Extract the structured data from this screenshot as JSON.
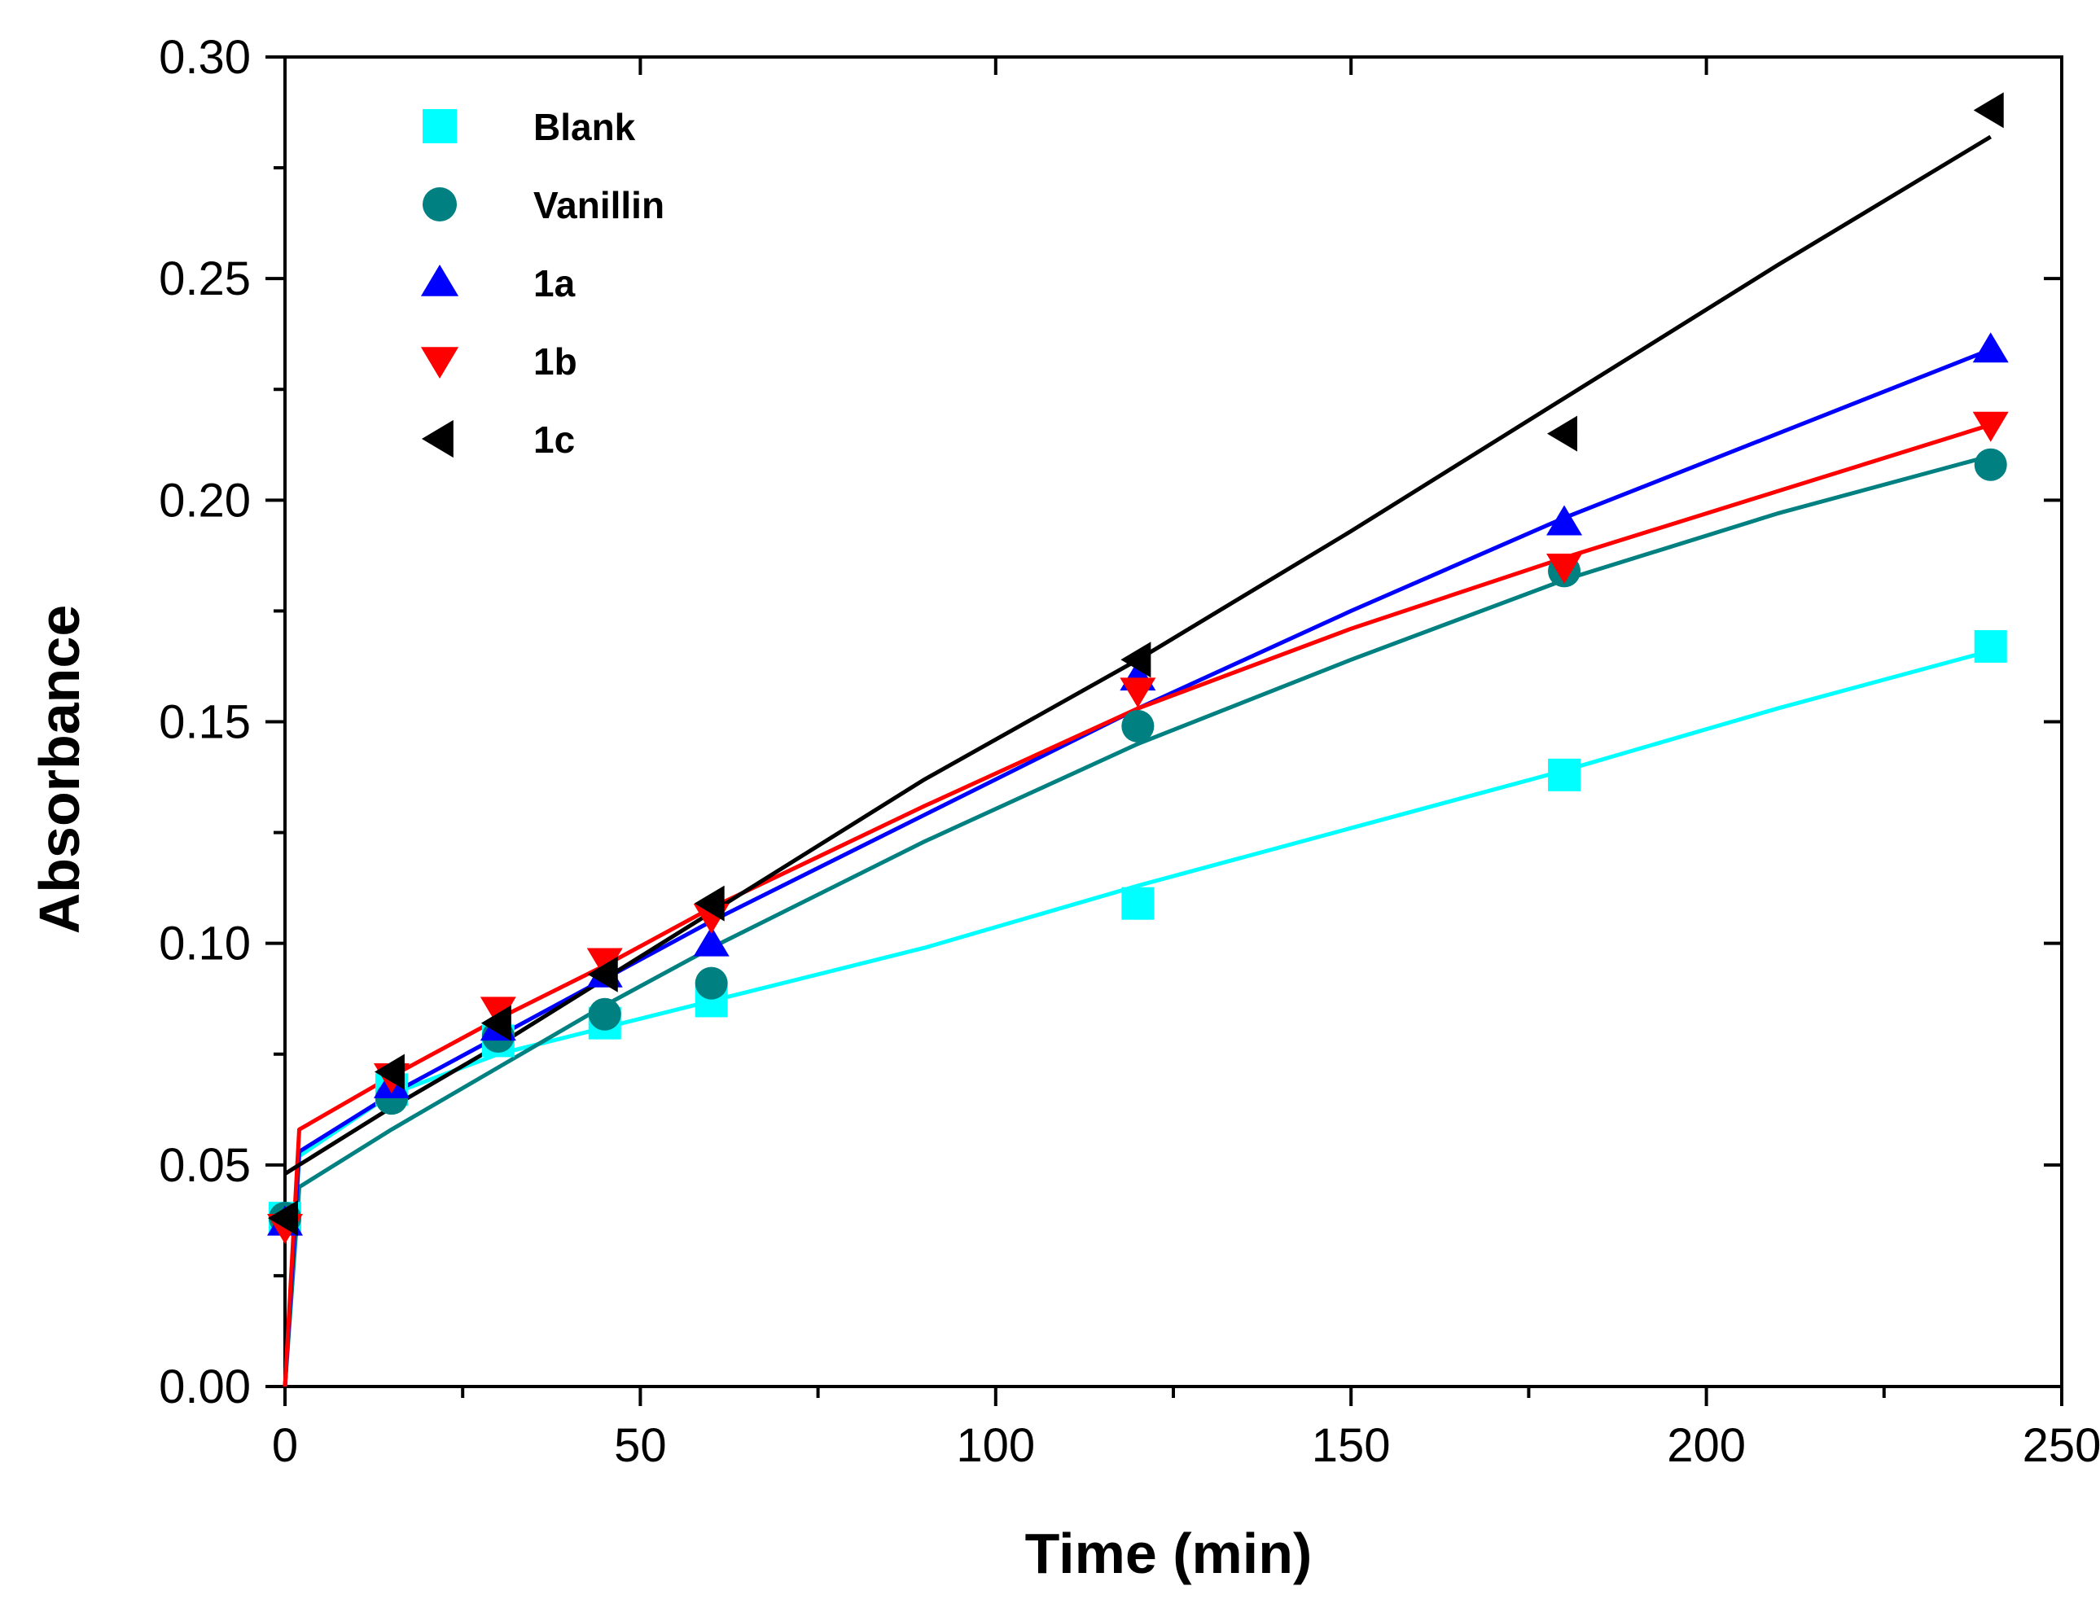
{
  "chart_data": {
    "type": "scatter",
    "title": "",
    "xlabel": "Time (min)",
    "ylabel": "Absorbance",
    "xlim": [
      0,
      250
    ],
    "ylim": [
      0,
      0.3
    ],
    "xticks": [
      0,
      50,
      100,
      150,
      200,
      250
    ],
    "xtick_labels": [
      "0",
      "50",
      "100",
      "150",
      "200",
      "250"
    ],
    "yticks": [
      0,
      0.05,
      0.1,
      0.15,
      0.2,
      0.25,
      0.3
    ],
    "ytick_labels": [
      "0.00",
      "0.05",
      "0.10",
      "0.15",
      "0.20",
      "0.25",
      "0.30"
    ],
    "grid": false,
    "legend_position": "top-left",
    "series": [
      {
        "name": "Blank",
        "marker": "square",
        "color": "#00FFFF",
        "x": [
          0,
          15,
          30,
          45,
          60,
          120,
          180,
          240
        ],
        "values": [
          0.038,
          0.067,
          0.078,
          0.082,
          0.087,
          0.109,
          0.138,
          0.167
        ],
        "fit_x": [
          0,
          2,
          15,
          30,
          45,
          60,
          90,
          120,
          150,
          180,
          210,
          240
        ],
        "fit_values": [
          0,
          0.052,
          0.066,
          0.075,
          0.081,
          0.087,
          0.099,
          0.113,
          0.126,
          0.139,
          0.153,
          0.166
        ]
      },
      {
        "name": "Vanillin",
        "marker": "circle",
        "color": "#008080",
        "x": [
          0,
          15,
          30,
          45,
          60,
          120,
          180,
          240
        ],
        "values": [
          0.038,
          0.065,
          0.079,
          0.084,
          0.091,
          0.149,
          0.184,
          0.208
        ],
        "fit_x": [
          0,
          2,
          15,
          30,
          45,
          60,
          90,
          120,
          150,
          180,
          210,
          240
        ],
        "fit_values": [
          0,
          0.045,
          0.058,
          0.072,
          0.086,
          0.099,
          0.123,
          0.145,
          0.164,
          0.182,
          0.197,
          0.21
        ]
      },
      {
        "name": "1a",
        "marker": "triangle-up",
        "color": "#0000FF",
        "x": [
          0,
          15,
          30,
          45,
          60,
          120,
          180,
          240
        ],
        "values": [
          0.037,
          0.068,
          0.081,
          0.093,
          0.1,
          0.16,
          0.195,
          0.234
        ],
        "fit_x": [
          0,
          2,
          15,
          30,
          45,
          60,
          90,
          120,
          150,
          180,
          210,
          240
        ],
        "fit_values": [
          0,
          0.053,
          0.066,
          0.079,
          0.092,
          0.105,
          0.129,
          0.153,
          0.175,
          0.196,
          0.215,
          0.234
        ]
      },
      {
        "name": "1b",
        "marker": "triangle-down",
        "color": "#FF0000",
        "x": [
          0,
          15,
          30,
          45,
          60,
          120,
          180,
          240
        ],
        "values": [
          0.036,
          0.07,
          0.085,
          0.096,
          0.106,
          0.157,
          0.185,
          0.217
        ],
        "fit_x": [
          0,
          2,
          15,
          30,
          45,
          60,
          90,
          120,
          150,
          180,
          210,
          240
        ],
        "fit_values": [
          0,
          0.058,
          0.07,
          0.083,
          0.095,
          0.108,
          0.131,
          0.153,
          0.171,
          0.187,
          0.202,
          0.217
        ]
      },
      {
        "name": "1c",
        "marker": "triangle-left",
        "color": "#000000",
        "x": [
          0,
          15,
          30,
          45,
          60,
          120,
          180,
          240
        ],
        "values": [
          0.038,
          0.071,
          0.082,
          0.093,
          0.109,
          0.164,
          0.215,
          0.288
        ],
        "fit_x": [
          0,
          2,
          15,
          30,
          45,
          60,
          90,
          120,
          150,
          180,
          210,
          240
        ],
        "fit_values": [
          0.048,
          0.05,
          0.063,
          0.077,
          0.092,
          0.107,
          0.137,
          0.164,
          0.193,
          0.223,
          0.253,
          0.282
        ]
      }
    ]
  }
}
